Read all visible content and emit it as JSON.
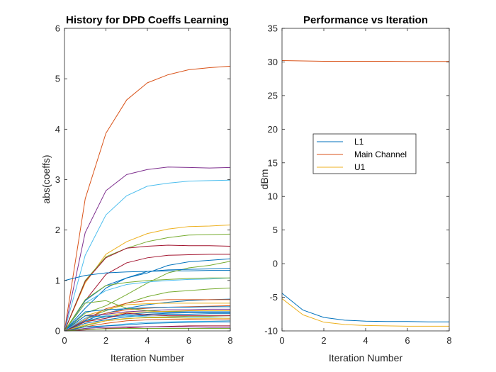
{
  "chart_data": [
    {
      "type": "line",
      "title": "History for DPD Coeffs Learning",
      "xlabel": "Iteration Number",
      "ylabel": "abs(coeffs)",
      "xlim": [
        0,
        8
      ],
      "ylim": [
        0,
        6
      ],
      "xticks": [
        0,
        2,
        4,
        6,
        8
      ],
      "yticks": [
        0,
        1,
        2,
        3,
        4,
        5,
        6
      ],
      "x": [
        0,
        1,
        2,
        3,
        4,
        5,
        6,
        7,
        8
      ],
      "legend": null,
      "series": [
        {
          "color": "#D95319",
          "values": [
            0.0,
            2.62,
            3.92,
            4.58,
            4.92,
            5.08,
            5.18,
            5.22,
            5.25
          ]
        },
        {
          "color": "#7E2F8E",
          "values": [
            0.0,
            1.95,
            2.78,
            3.1,
            3.2,
            3.25,
            3.24,
            3.23,
            3.24
          ]
        },
        {
          "color": "#4DBEEE",
          "values": [
            0.0,
            1.5,
            2.3,
            2.68,
            2.87,
            2.93,
            2.97,
            2.98,
            2.99
          ]
        },
        {
          "color": "#EDB120",
          "values": [
            0.0,
            0.95,
            1.52,
            1.77,
            1.93,
            2.02,
            2.07,
            2.08,
            2.1
          ]
        },
        {
          "color": "#77AC30",
          "values": [
            0.0,
            1.0,
            1.47,
            1.64,
            1.77,
            1.85,
            1.9,
            1.91,
            1.92
          ]
        },
        {
          "color": "#A2142F",
          "values": [
            0.0,
            0.98,
            1.45,
            1.64,
            1.68,
            1.7,
            1.69,
            1.69,
            1.68
          ]
        },
        {
          "color": "#A2142F",
          "values": [
            0.0,
            0.6,
            1.12,
            1.35,
            1.45,
            1.5,
            1.51,
            1.52,
            1.52
          ]
        },
        {
          "color": "#0072BD",
          "values": [
            1.0,
            1.1,
            1.15,
            1.17,
            1.18,
            1.19,
            1.19,
            1.2,
            1.2
          ]
        },
        {
          "color": "#0072BD",
          "values": [
            0.0,
            0.6,
            0.9,
            1.05,
            1.15,
            1.3,
            1.37,
            1.4,
            1.43
          ]
        },
        {
          "color": "#77AC30",
          "values": [
            0.0,
            0.35,
            0.5,
            0.72,
            0.95,
            1.15,
            1.25,
            1.3,
            1.38
          ]
        },
        {
          "color": "#0072BD",
          "values": [
            0.0,
            0.45,
            0.85,
            1.05,
            1.18,
            1.21,
            1.22,
            1.23,
            1.24
          ]
        },
        {
          "color": "#4DBEEE",
          "values": [
            0.0,
            0.55,
            0.8,
            0.92,
            0.97,
            1.0,
            1.02,
            1.03,
            1.05
          ]
        },
        {
          "color": "#77AC30",
          "values": [
            0.0,
            0.62,
            0.9,
            0.96,
            1.0,
            1.02,
            1.04,
            1.05,
            1.05
          ]
        },
        {
          "color": "#77AC30",
          "values": [
            0.0,
            0.25,
            0.4,
            0.55,
            0.68,
            0.77,
            0.8,
            0.83,
            0.85
          ]
        },
        {
          "color": "#0072BD",
          "values": [
            0.0,
            0.2,
            0.35,
            0.45,
            0.52,
            0.57,
            0.6,
            0.62,
            0.63
          ]
        },
        {
          "color": "#D95319",
          "values": [
            0.0,
            0.22,
            0.44,
            0.55,
            0.6,
            0.62,
            0.62,
            0.62,
            0.62
          ]
        },
        {
          "color": "#EDB120",
          "values": [
            0.0,
            0.3,
            0.42,
            0.52,
            0.54,
            0.55,
            0.55,
            0.55,
            0.55
          ]
        },
        {
          "color": "#D95319",
          "values": [
            0.0,
            0.25,
            0.35,
            0.42,
            0.45,
            0.47,
            0.48,
            0.49,
            0.5
          ]
        },
        {
          "color": "#0072BD",
          "values": [
            0.0,
            0.38,
            0.42,
            0.44,
            0.46,
            0.47,
            0.47,
            0.48,
            0.48
          ]
        },
        {
          "color": "#7E2F8E",
          "values": [
            0.0,
            0.3,
            0.33,
            0.38,
            0.4,
            0.42,
            0.42,
            0.43,
            0.43
          ]
        },
        {
          "color": "#77AC30",
          "values": [
            0.0,
            0.55,
            0.6,
            0.45,
            0.4,
            0.38,
            0.38,
            0.38,
            0.38
          ]
        },
        {
          "color": "#EDB120",
          "values": [
            0.0,
            0.18,
            0.3,
            0.36,
            0.38,
            0.39,
            0.4,
            0.4,
            0.4
          ]
        },
        {
          "color": "#0072BD",
          "values": [
            0.0,
            0.2,
            0.28,
            0.33,
            0.36,
            0.37,
            0.38,
            0.38,
            0.38
          ]
        },
        {
          "color": "#0072BD",
          "values": [
            0.0,
            0.3,
            0.28,
            0.3,
            0.33,
            0.35,
            0.36,
            0.36,
            0.36
          ]
        },
        {
          "color": "#0072BD",
          "values": [
            0.0,
            0.15,
            0.22,
            0.28,
            0.31,
            0.33,
            0.33,
            0.34,
            0.34
          ]
        },
        {
          "color": "#4DBEEE",
          "values": [
            0.0,
            0.25,
            0.3,
            0.3,
            0.28,
            0.27,
            0.26,
            0.26,
            0.25
          ]
        },
        {
          "color": "#77AC30",
          "values": [
            0.0,
            0.1,
            0.2,
            0.24,
            0.27,
            0.28,
            0.29,
            0.29,
            0.3
          ]
        },
        {
          "color": "#A2142F",
          "values": [
            0.0,
            0.18,
            0.25,
            0.35,
            0.32,
            0.3,
            0.3,
            0.3,
            0.3
          ]
        },
        {
          "color": "#EDB120",
          "values": [
            0.0,
            0.12,
            0.2,
            0.25,
            0.26,
            0.26,
            0.25,
            0.25,
            0.25
          ]
        },
        {
          "color": "#D95319",
          "values": [
            0.0,
            0.08,
            0.15,
            0.2,
            0.22,
            0.23,
            0.23,
            0.22,
            0.22
          ]
        },
        {
          "color": "#4DBEEE",
          "values": [
            0.0,
            0.05,
            0.1,
            0.14,
            0.17,
            0.18,
            0.19,
            0.19,
            0.2
          ]
        },
        {
          "color": "#0072BD",
          "values": [
            0.0,
            0.08,
            0.1,
            0.12,
            0.15,
            0.16,
            0.17,
            0.18,
            0.18
          ]
        },
        {
          "color": "#A2142F",
          "values": [
            0.0,
            0.02,
            0.05,
            0.06,
            0.08,
            0.09,
            0.1,
            0.1,
            0.1
          ]
        },
        {
          "color": "#7E2F8E",
          "values": [
            0.0,
            0.05,
            0.07,
            0.08,
            0.08,
            0.08,
            0.08,
            0.07,
            0.07
          ]
        },
        {
          "color": "#77AC30",
          "values": [
            0.0,
            0.03,
            0.04,
            0.05,
            0.05,
            0.05,
            0.05,
            0.05,
            0.05
          ]
        }
      ]
    },
    {
      "type": "line",
      "title": "Performance vs Iteration",
      "xlabel": "Iteration Number",
      "ylabel": "dBm",
      "xlim": [
        0,
        8
      ],
      "ylim": [
        -10,
        35
      ],
      "xticks": [
        0,
        2,
        4,
        6,
        8
      ],
      "yticks": [
        -10,
        -5,
        0,
        5,
        10,
        15,
        20,
        25,
        30,
        35
      ],
      "x": [
        0,
        1,
        2,
        3,
        4,
        5,
        6,
        7,
        8
      ],
      "legend": "middle-center",
      "series": [
        {
          "name": "L1",
          "color": "#0072BD",
          "values": [
            -4.4,
            -6.9,
            -8.0,
            -8.4,
            -8.55,
            -8.6,
            -8.6,
            -8.65,
            -8.65
          ]
        },
        {
          "name": "Main Channel",
          "color": "#D95319",
          "values": [
            30.2,
            30.15,
            30.1,
            30.1,
            30.1,
            30.1,
            30.08,
            30.08,
            30.08
          ]
        },
        {
          "name": "U1",
          "color": "#EDB120",
          "values": [
            -5.2,
            -7.6,
            -8.7,
            -9.05,
            -9.2,
            -9.25,
            -9.3,
            -9.3,
            -9.3
          ]
        }
      ]
    }
  ]
}
